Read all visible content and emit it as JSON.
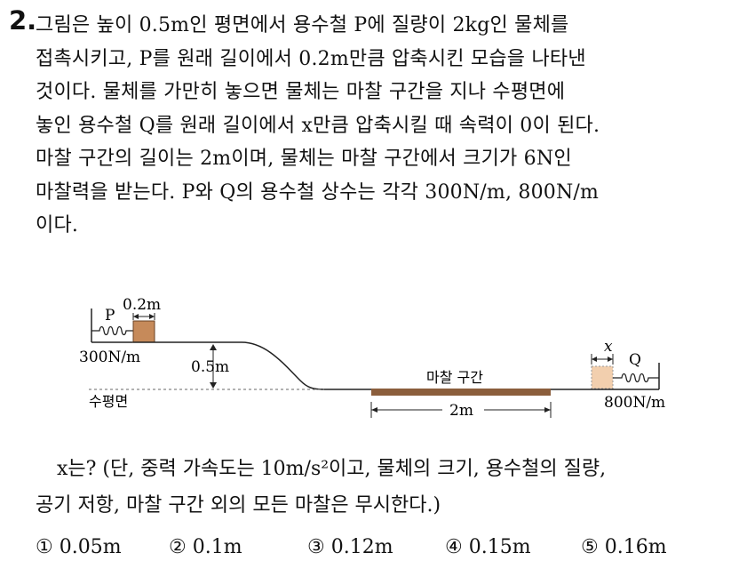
{
  "question": {
    "number": "2.",
    "stem_lines": [
      "그림은 높이 0.5m인 평면에서 용수철 P에 질량이 2kg인 물체를",
      "접촉시키고, P를 원래 길이에서 0.2m만큼 압축시킨 모습을 나타낸",
      "것이다. 물체를 가만히 놓으면 물체는 마찰 구간을 지나 수평면에",
      "놓인 용수철 Q를 원래 길이에서 x만큼 압축시킬 때 속력이 0이 된다.",
      "마찰 구간의 길이는 2m이며, 물체는 마찰 구간에서 크기가 6N인",
      "마찰력을 받는다. P와 Q의 용수철 상수는 각각 300N/m, 800N/m",
      "이다."
    ],
    "ask_lines": [
      "x는? (단, 중력 가속도는 10m/s²이고, 물체의 크기, 용수철의 질량,",
      "공기 저항, 마찰 구간 외의 모든 마찰은 무시한다.)"
    ],
    "choices": [
      {
        "mark": "①",
        "text": "0.05m"
      },
      {
        "mark": "②",
        "text": "0.1m"
      },
      {
        "mark": "③",
        "text": "0.12m"
      },
      {
        "mark": "④",
        "text": "0.15m"
      },
      {
        "mark": "⑤",
        "text": "0.16m"
      }
    ]
  },
  "figure": {
    "label_compression_p": "0.2m",
    "label_spring_p": "P",
    "label_k_p": "300N/m",
    "label_height": "0.5m",
    "label_ground": "수평면",
    "label_friction": "마찰 구간",
    "label_friction_length": "2m",
    "label_compression_q": "x",
    "label_spring_q": "Q",
    "label_k_q": "800N/m",
    "colors": {
      "block": "#c68a5a",
      "block_ghost": "#f2cfae",
      "friction_strip": "#8b5e3c",
      "line": "#222222"
    }
  }
}
